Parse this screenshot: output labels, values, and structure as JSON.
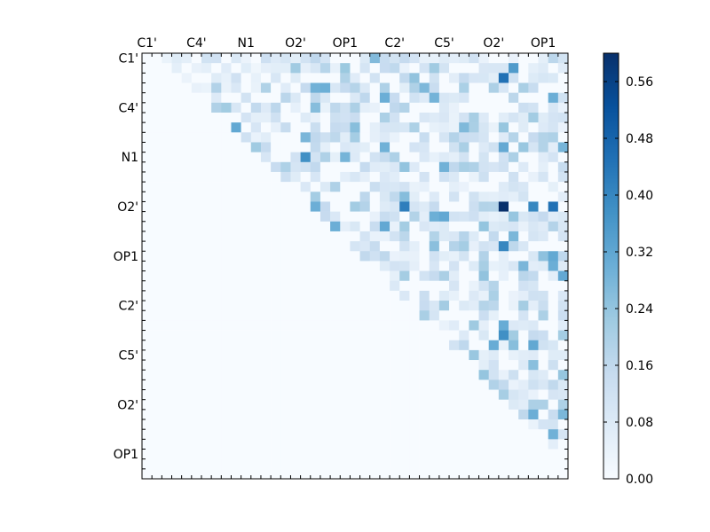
{
  "chart_data": {
    "type": "heatmap",
    "title": "",
    "xlabel": "",
    "ylabel": "",
    "x_tick_labels": [
      "C1'",
      "C4'",
      "N1",
      "O2'",
      "OP1",
      "C2'",
      "C5'",
      "O2'",
      "OP1"
    ],
    "y_tick_labels": [
      "C1'",
      "C4'",
      "N1",
      "O2'",
      "OP1",
      "C2'",
      "C5'",
      "O2'",
      "OP1"
    ],
    "n": 43,
    "label_stride": 5,
    "colorbar": {
      "min": 0.0,
      "max": 0.6,
      "ticks": [
        "0.00",
        "0.08",
        "0.16",
        "0.24",
        "0.32",
        "0.40",
        "0.48",
        "0.56"
      ],
      "tick_values": [
        0.0,
        0.08,
        0.16,
        0.24,
        0.32,
        0.4,
        0.48,
        0.56
      ],
      "colormap": "Blues",
      "color_stops": [
        "#f7fbff",
        "#deebf7",
        "#c6dbef",
        "#9ecae1",
        "#6baed6",
        "#4292c6",
        "#2171b5",
        "#08519c",
        "#08306b"
      ]
    },
    "upper_triangle_only": true,
    "notable_cells": [
      {
        "row": 15,
        "col": 36,
        "value": 0.6
      },
      {
        "row": 15,
        "col": 41,
        "value": 0.45
      },
      {
        "row": 15,
        "col": 26,
        "value": 0.42
      },
      {
        "row": 15,
        "col": 39,
        "value": 0.4
      },
      {
        "row": 2,
        "col": 36,
        "value": 0.45
      },
      {
        "row": 10,
        "col": 16,
        "value": 0.38
      },
      {
        "row": 19,
        "col": 36,
        "value": 0.4
      },
      {
        "row": 28,
        "col": 36,
        "value": 0.38
      },
      {
        "row": 36,
        "col": 39,
        "value": 0.3
      },
      {
        "row": 1,
        "col": 37,
        "value": 0.35
      }
    ]
  }
}
